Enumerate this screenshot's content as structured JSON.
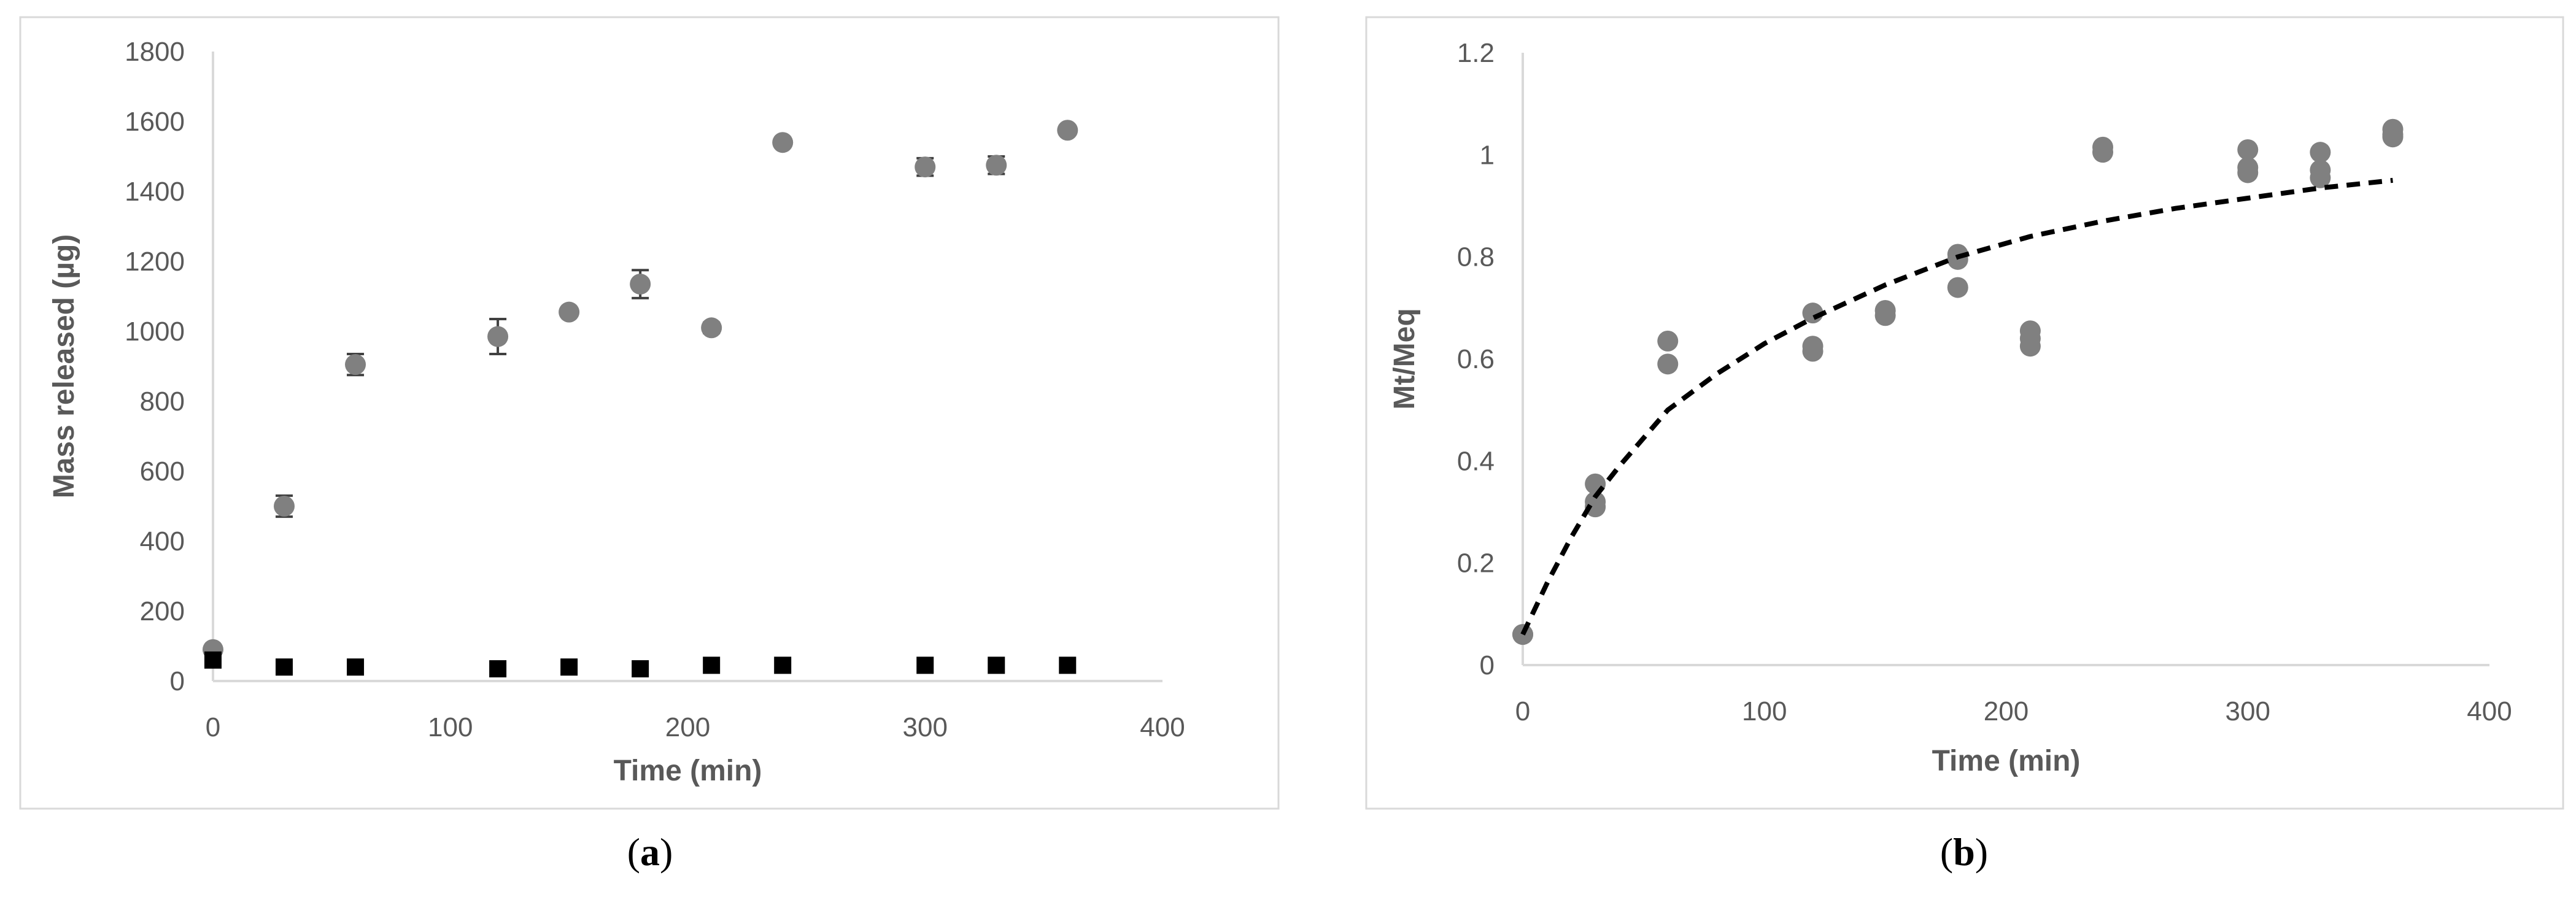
{
  "chart_data": [
    {
      "panel_label": "a",
      "type": "scatter",
      "title": "",
      "xlabel": "Time (min)",
      "ylabel": "Mass released (µg)",
      "xlim": [
        0,
        400
      ],
      "ylim": [
        0,
        1800
      ],
      "xticks": [
        0,
        100,
        200,
        300,
        400
      ],
      "yticks": [
        0,
        200,
        400,
        600,
        800,
        1000,
        1200,
        1400,
        1600,
        1800
      ],
      "grid": false,
      "legend": "none",
      "series": [
        {
          "marker": "circle",
          "color": "#808080",
          "x": [
            0,
            30,
            60,
            120,
            150,
            180,
            210,
            240,
            300,
            330,
            360
          ],
          "y": [
            90,
            500,
            905,
            985,
            1055,
            1135,
            1010,
            1540,
            1470,
            1475,
            1575
          ],
          "error": [
            0,
            30,
            30,
            50,
            10,
            40,
            15,
            10,
            25,
            25,
            10
          ]
        },
        {
          "marker": "square",
          "color": "#000000",
          "x": [
            0,
            30,
            60,
            120,
            150,
            180,
            210,
            240,
            300,
            330,
            360
          ],
          "y": [
            60,
            40,
            40,
            35,
            40,
            35,
            45,
            45,
            45,
            45,
            45
          ]
        }
      ]
    },
    {
      "panel_label": "b",
      "type": "scatter",
      "title": "",
      "xlabel": "Time (min)",
      "ylabel": "Mt/Meq",
      "xlim": [
        0,
        400
      ],
      "ylim": [
        0,
        1.2
      ],
      "xticks": [
        0,
        100,
        200,
        300,
        400
      ],
      "yticks": [
        0,
        0.2,
        0.4,
        0.6,
        0.8,
        1,
        1.2
      ],
      "grid": false,
      "legend": "none",
      "series": [
        {
          "marker": "circle",
          "color": "#808080",
          "x": [
            0,
            0,
            30,
            30,
            30,
            60,
            60,
            120,
            120,
            120,
            150,
            150,
            180,
            180,
            180,
            210,
            210,
            210,
            240,
            240,
            300,
            300,
            300,
            330,
            330,
            330,
            360,
            360,
            360
          ],
          "y": [
            0.06,
            0.06,
            0.31,
            0.32,
            0.355,
            0.59,
            0.635,
            0.615,
            0.625,
            0.69,
            0.685,
            0.695,
            0.74,
            0.795,
            0.805,
            0.625,
            0.64,
            0.655,
            1.005,
            1.015,
            0.965,
            0.975,
            1.01,
            0.955,
            0.97,
            1.005,
            1.035,
            1.04,
            1.05
          ]
        },
        {
          "type": "line",
          "style": "dashed",
          "color": "#000000",
          "x": [
            0,
            10,
            20,
            30,
            40,
            60,
            80,
            100,
            120,
            150,
            180,
            210,
            240,
            270,
            300,
            330,
            360
          ],
          "y": [
            0.06,
            0.16,
            0.25,
            0.33,
            0.39,
            0.5,
            0.57,
            0.63,
            0.68,
            0.745,
            0.8,
            0.84,
            0.87,
            0.895,
            0.915,
            0.935,
            0.95
          ]
        }
      ]
    }
  ]
}
